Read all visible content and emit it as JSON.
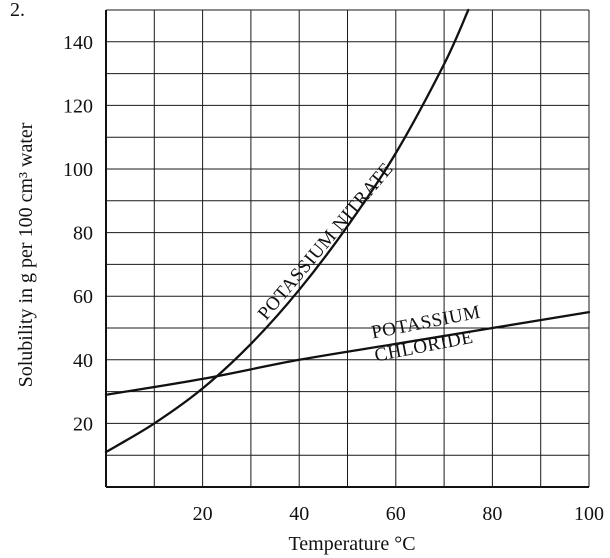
{
  "chart_data": {
    "type": "line",
    "xlabel": "Temperature °C",
    "ylabel": "Solubility in g per 100 cm³ water",
    "xlim": [
      0,
      100
    ],
    "ylim": [
      0,
      150
    ],
    "x_ticks": [
      "20",
      "40",
      "60",
      "80",
      "100"
    ],
    "y_ticks": [
      "20",
      "40",
      "60",
      "80",
      "100",
      "120",
      "140"
    ],
    "grid": true,
    "series": [
      {
        "name": "POTASSIUM NITRATE",
        "label_lines": [
          "POTASSIUM NITRATE"
        ],
        "x": [
          0,
          10,
          20,
          30,
          40,
          50,
          60,
          70,
          75
        ],
        "y": [
          11,
          20,
          31,
          45,
          62,
          82,
          105,
          133,
          150
        ]
      },
      {
        "name": "POTASSIUM CHLORIDE",
        "label_lines": [
          "POTASSIUM",
          "CHLORIDE"
        ],
        "x": [
          0,
          20,
          40,
          60,
          80,
          100
        ],
        "y": [
          29,
          34,
          40,
          45,
          50,
          55
        ]
      }
    ]
  }
}
